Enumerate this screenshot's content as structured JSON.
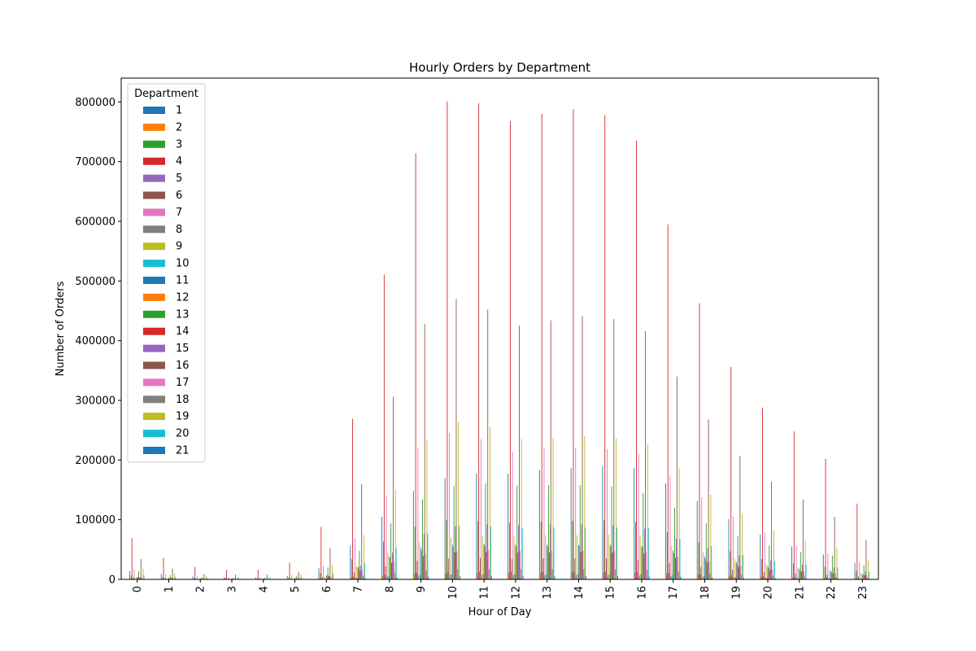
{
  "chart_data": {
    "type": "bar",
    "title": "Hourly Orders by Department",
    "xlabel": "Hour of Day",
    "ylabel": "Number of Orders",
    "ylim": [
      0,
      840000
    ],
    "yticks": [
      0,
      100000,
      200000,
      300000,
      400000,
      500000,
      600000,
      700000,
      800000
    ],
    "legend_title": "Department",
    "legend_position": "upper-left",
    "categories": [
      "0",
      "1",
      "2",
      "3",
      "4",
      "5",
      "6",
      "7",
      "8",
      "9",
      "10",
      "11",
      "12",
      "13",
      "14",
      "15",
      "16",
      "17",
      "18",
      "19",
      "20",
      "21",
      "22",
      "23"
    ],
    "series": [
      {
        "name": "1",
        "color": "#1f77b4",
        "values": [
          14000,
          9000,
          5000,
          4000,
          3000,
          6000,
          19000,
          57000,
          105000,
          148000,
          170000,
          177000,
          177000,
          183000,
          186000,
          190000,
          186000,
          161000,
          131000,
          101000,
          75000,
          55000,
          42000,
          28000
        ]
      },
      {
        "name": "2",
        "color": "#ff7f0e",
        "values": [
          1000,
          500,
          300,
          300,
          300,
          500,
          1200,
          3500,
          6500,
          9000,
          10000,
          11000,
          11000,
          11000,
          11500,
          11500,
          11000,
          10000,
          8000,
          6000,
          4500,
          3500,
          2500,
          1700
        ]
      },
      {
        "name": "3",
        "color": "#2ca02c",
        "values": [
          7000,
          4000,
          2500,
          2000,
          1800,
          3500,
          10000,
          34000,
          63000,
          88000,
          99000,
          98000,
          95000,
          97000,
          98000,
          99000,
          96000,
          79000,
          62000,
          47000,
          34000,
          27000,
          21000,
          14000
        ]
      },
      {
        "name": "4",
        "color": "#d62728",
        "values": [
          69000,
          36000,
          21000,
          16000,
          16000,
          28000,
          88000,
          269000,
          511000,
          714000,
          801000,
          798000,
          768000,
          780000,
          788000,
          778000,
          735000,
          595000,
          463000,
          356000,
          288000,
          248000,
          202000,
          127000
        ]
      },
      {
        "name": "5",
        "color": "#9467bd",
        "values": [
          1000,
          600,
          400,
          400,
          400,
          700,
          1500,
          4500,
          8000,
          11000,
          13000,
          13000,
          12500,
          12500,
          13000,
          13000,
          12500,
          11000,
          8500,
          6500,
          5000,
          4000,
          3000,
          2000
        ]
      },
      {
        "name": "6",
        "color": "#8c564b",
        "values": [
          3000,
          2000,
          1000,
          1000,
          1000,
          1500,
          4000,
          12000,
          22000,
          31000,
          35000,
          36000,
          34000,
          35000,
          35000,
          35000,
          33000,
          27000,
          21000,
          16000,
          12000,
          10000,
          8000,
          5000
        ]
      },
      {
        "name": "7",
        "color": "#e377c2",
        "values": [
          17000,
          9000,
          5000,
          4000,
          4000,
          7000,
          23000,
          69000,
          140000,
          220000,
          245000,
          235000,
          214000,
          220000,
          221000,
          218000,
          210000,
          174000,
          137000,
          105000,
          78000,
          56000,
          44000,
          29000
        ]
      },
      {
        "name": "8",
        "color": "#7f7f7f",
        "values": [
          500,
          300,
          200,
          200,
          200,
          300,
          800,
          2500,
          4500,
          6500,
          7500,
          7500,
          7000,
          7000,
          7000,
          7000,
          6500,
          5500,
          4500,
          3500,
          2500,
          2000,
          1500,
          1000
        ]
      },
      {
        "name": "9",
        "color": "#bcbd22",
        "values": [
          3000,
          1500,
          1000,
          800,
          800,
          1500,
          4500,
          22000,
          44000,
          62000,
          70000,
          72000,
          72000,
          74000,
          74000,
          75000,
          73000,
          57000,
          45000,
          34000,
          26000,
          20000,
          16000,
          11000
        ]
      },
      {
        "name": "10",
        "color": "#17becf",
        "values": [
          500,
          300,
          200,
          200,
          200,
          300,
          900,
          3000,
          5500,
          7500,
          8500,
          9000,
          8500,
          8500,
          8500,
          9000,
          8500,
          7000,
          5500,
          4000,
          3000,
          2500,
          2000,
          1300
        ]
      },
      {
        "name": "11",
        "color": "#1f77b4",
        "values": [
          4000,
          2500,
          1500,
          1200,
          1200,
          2000,
          6500,
          20000,
          38000,
          53000,
          58000,
          59000,
          58000,
          58000,
          58000,
          58000,
          56000,
          48000,
          38000,
          29000,
          22000,
          18000,
          14000,
          9000
        ]
      },
      {
        "name": "12",
        "color": "#ff7f0e",
        "values": [
          4000,
          2000,
          1200,
          1000,
          1000,
          1800,
          7000,
          22000,
          37000,
          48000,
          54000,
          56000,
          55000,
          55000,
          56000,
          55000,
          53000,
          44000,
          34000,
          26000,
          19000,
          15000,
          12000,
          8000
        ]
      },
      {
        "name": "13",
        "color": "#2ca02c",
        "values": [
          14000,
          7000,
          4000,
          3000,
          3000,
          6000,
          20000,
          48000,
          94000,
          134000,
          157000,
          161000,
          157000,
          158000,
          158000,
          156000,
          145000,
          120000,
          94000,
          73000,
          57000,
          46000,
          40000,
          24000
        ]
      },
      {
        "name": "14",
        "color": "#d62728",
        "values": [
          3000,
          2000,
          1000,
          800,
          800,
          1500,
          5000,
          15000,
          28000,
          39000,
          45000,
          46000,
          45000,
          45000,
          46000,
          45000,
          43000,
          36000,
          28000,
          21000,
          16000,
          13000,
          10000,
          7000
        ]
      },
      {
        "name": "15",
        "color": "#9467bd",
        "values": [
          4000,
          2500,
          1300,
          1100,
          1100,
          2000,
          6500,
          23000,
          45000,
          76000,
          89000,
          92000,
          91000,
          92000,
          92000,
          91000,
          85000,
          68000,
          52000,
          40000,
          32000,
          25000,
          20000,
          13000
        ]
      },
      {
        "name": "16",
        "color": "#8c564b",
        "values": [
          34000,
          18000,
          9000,
          8000,
          8000,
          13000,
          52000,
          160000,
          306000,
          428000,
          470000,
          452000,
          425000,
          434000,
          441000,
          436000,
          416000,
          340000,
          268000,
          207000,
          164000,
          134000,
          105000,
          66000
        ]
      },
      {
        "name": "17",
        "color": "#e377c2",
        "values": [
          3000,
          2000,
          1000,
          800,
          800,
          1500,
          5000,
          16000,
          30000,
          42000,
          47000,
          49000,
          48000,
          48000,
          48000,
          48000,
          46000,
          38000,
          30000,
          23000,
          17000,
          14000,
          11000,
          7000
        ]
      },
      {
        "name": "18",
        "color": "#7f7f7f",
        "values": [
          1000,
          600,
          300,
          300,
          300,
          500,
          1800,
          6000,
          11000,
          15000,
          17000,
          17000,
          17000,
          17000,
          17000,
          17000,
          16000,
          13000,
          10000,
          8000,
          6000,
          5000,
          4000,
          2500
        ]
      },
      {
        "name": "19",
        "color": "#bcbd22",
        "values": [
          18000,
          10000,
          6000,
          4000,
          4000,
          9000,
          24000,
          74000,
          151000,
          234000,
          264000,
          255000,
          235000,
          237000,
          240000,
          236000,
          227000,
          186000,
          142000,
          110000,
          82000,
          65000,
          53000,
          33000
        ]
      },
      {
        "name": "20",
        "color": "#17becf",
        "values": [
          7000,
          4000,
          2500,
          2000,
          2000,
          4000,
          10000,
          27000,
          53000,
          77000,
          90000,
          89000,
          86000,
          87000,
          87000,
          87000,
          86000,
          68000,
          56000,
          41000,
          30000,
          25000,
          20000,
          13000
        ]
      },
      {
        "name": "21",
        "color": "#1f77b4",
        "values": [
          500,
          300,
          200,
          200,
          200,
          300,
          700,
          2000,
          3500,
          5000,
          5500,
          5500,
          5500,
          5500,
          5500,
          5500,
          5000,
          4500,
          3500,
          2500,
          2000,
          1500,
          1200,
          800
        ]
      }
    ]
  }
}
